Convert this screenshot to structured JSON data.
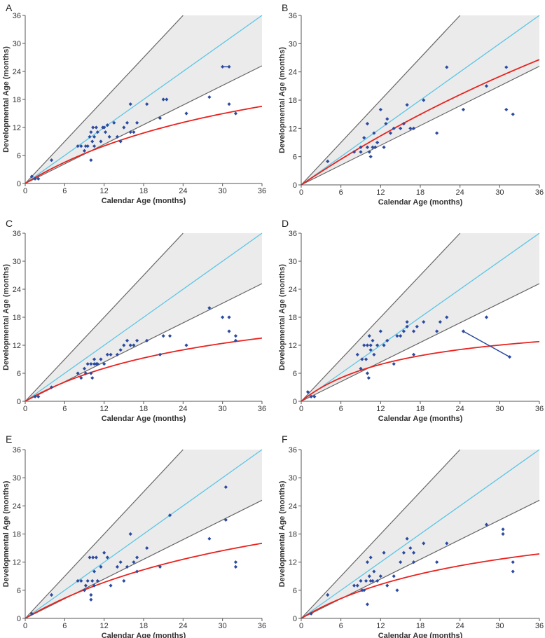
{
  "colors": {
    "band_fill": "#ebebeb",
    "band_edge": "#666666",
    "identity_line": "#5bc6e6",
    "fit_line": "#e8231f",
    "points": "#2b4aa0",
    "axis": "#555555"
  },
  "chart_data": [
    {
      "label": "A",
      "type": "scatter",
      "xlabel": "Calendar Age (months)",
      "ylabel": "Developmental Age (months)",
      "xlim": [
        0,
        36
      ],
      "ylim": [
        0,
        36
      ],
      "xticks": [
        "0",
        "6",
        "12",
        "18",
        "24",
        "30",
        "36"
      ],
      "yticks": [
        "0",
        "6",
        "12",
        "18",
        "24",
        "30",
        "36"
      ],
      "band": {
        "upper_slope": 1.5,
        "lower_slope": 0.7
      },
      "identity": true,
      "fit": {
        "a": 35.0,
        "b": 0.87
      },
      "points": [
        [
          1,
          1.5
        ],
        [
          1.5,
          1
        ],
        [
          2,
          1
        ],
        [
          4,
          5
        ],
        [
          8,
          8
        ],
        [
          8.5,
          8
        ],
        [
          9,
          7
        ],
        [
          9.2,
          8
        ],
        [
          9.5,
          8
        ],
        [
          9.8,
          10
        ],
        [
          10,
          11
        ],
        [
          10,
          5
        ],
        [
          10.2,
          9
        ],
        [
          10.3,
          12
        ],
        [
          10.5,
          10
        ],
        [
          10.5,
          8
        ],
        [
          10.8,
          12
        ],
        [
          11,
          11
        ],
        [
          11.5,
          9
        ],
        [
          11.8,
          12
        ],
        [
          12,
          12
        ],
        [
          12.2,
          11
        ],
        [
          12.5,
          12.5
        ],
        [
          12.8,
          10
        ],
        [
          13.5,
          13
        ],
        [
          14,
          10
        ],
        [
          14.5,
          9
        ],
        [
          15,
          12
        ],
        [
          15.5,
          13
        ],
        [
          16,
          17
        ],
        [
          16,
          11
        ],
        [
          16.5,
          11
        ],
        [
          17,
          13
        ],
        [
          18.5,
          17
        ],
        [
          20.5,
          14
        ],
        [
          21,
          18
        ],
        [
          21.5,
          18
        ],
        [
          24.5,
          15
        ],
        [
          28,
          18.5
        ],
        [
          30,
          25
        ],
        [
          31,
          25
        ],
        [
          31,
          17
        ],
        [
          32,
          15
        ]
      ],
      "links": [
        [
          [
            30,
            25
          ],
          [
            31,
            25
          ]
        ]
      ]
    },
    {
      "label": "B",
      "type": "scatter",
      "xlabel": "Calendar Age (months)",
      "ylabel": "Developmental Age (months)",
      "xlim": [
        0,
        36
      ],
      "ylim": [
        0,
        36
      ],
      "xticks": [
        "0",
        "6",
        "12",
        "18",
        "24",
        "30",
        "36"
      ],
      "yticks": [
        "0",
        "6",
        "12",
        "18",
        "24",
        "30",
        "36"
      ],
      "band": {
        "upper_slope": 1.5,
        "lower_slope": 0.7
      },
      "identity": true,
      "fit": {
        "a": 120.0,
        "b": 0.95
      },
      "points": [
        [
          4,
          5
        ],
        [
          8,
          7
        ],
        [
          9,
          8
        ],
        [
          9,
          7
        ],
        [
          9.5,
          10
        ],
        [
          10,
          13
        ],
        [
          10,
          8
        ],
        [
          10.3,
          7
        ],
        [
          10.5,
          6
        ],
        [
          10.8,
          8
        ],
        [
          11,
          11
        ],
        [
          11.2,
          8
        ],
        [
          11.5,
          9
        ],
        [
          12,
          16
        ],
        [
          12.5,
          8
        ],
        [
          12.8,
          13
        ],
        [
          13,
          14
        ],
        [
          13.5,
          11
        ],
        [
          14,
          12
        ],
        [
          15,
          12
        ],
        [
          15.5,
          13
        ],
        [
          16,
          17
        ],
        [
          16.5,
          12
        ],
        [
          17,
          12
        ],
        [
          18.5,
          18
        ],
        [
          20.5,
          11
        ],
        [
          22,
          25
        ],
        [
          24.5,
          16
        ],
        [
          28,
          21
        ],
        [
          31,
          25
        ],
        [
          31,
          16
        ],
        [
          32,
          15
        ]
      ],
      "links": []
    },
    {
      "label": "C",
      "type": "scatter",
      "xlabel": "Calendar Age (months)",
      "ylabel": "Developmental Age (months)",
      "xlim": [
        0,
        36
      ],
      "ylim": [
        0,
        36
      ],
      "xticks": [
        "0",
        "6",
        "12",
        "18",
        "24",
        "30",
        "36"
      ],
      "yticks": [
        "0",
        "6",
        "12",
        "18",
        "24",
        "30",
        "36"
      ],
      "band": {
        "upper_slope": 1.5,
        "lower_slope": 0.7
      },
      "identity": true,
      "fit": {
        "a": 25.0,
        "b": 0.82
      },
      "points": [
        [
          1.5,
          1
        ],
        [
          2,
          1
        ],
        [
          4,
          3
        ],
        [
          8,
          6
        ],
        [
          8.5,
          5
        ],
        [
          9,
          7
        ],
        [
          9.2,
          6
        ],
        [
          9.5,
          8
        ],
        [
          10,
          8
        ],
        [
          10,
          6
        ],
        [
          10.2,
          5
        ],
        [
          10.5,
          8
        ],
        [
          10.5,
          9
        ],
        [
          10.8,
          8
        ],
        [
          11,
          8
        ],
        [
          11.5,
          9
        ],
        [
          12,
          8
        ],
        [
          12.5,
          10
        ],
        [
          13,
          10
        ],
        [
          14,
          10
        ],
        [
          14.5,
          11
        ],
        [
          15,
          12
        ],
        [
          15.5,
          13
        ],
        [
          16,
          12
        ],
        [
          16.5,
          12
        ],
        [
          17,
          13
        ],
        [
          18.5,
          13
        ],
        [
          20.5,
          10
        ],
        [
          21,
          14
        ],
        [
          22,
          14
        ],
        [
          24.5,
          12
        ],
        [
          28,
          20
        ],
        [
          30,
          18
        ],
        [
          31,
          18
        ],
        [
          31,
          15
        ],
        [
          32,
          14
        ],
        [
          32,
          13
        ]
      ],
      "links": []
    },
    {
      "label": "D",
      "type": "scatter",
      "xlabel": "Calendar Age (months)",
      "ylabel": "Developmental Age (months)",
      "xlim": [
        0,
        36
      ],
      "ylim": [
        0,
        36
      ],
      "xticks": [
        "0",
        "6",
        "12",
        "18",
        "24",
        "30",
        "36"
      ],
      "yticks": [
        "0",
        "6",
        "12",
        "18",
        "24",
        "30",
        "36"
      ],
      "band": {
        "upper_slope": 1.5,
        "lower_slope": 0.7
      },
      "identity": true,
      "fit": {
        "a": 18.5,
        "b": 1.15
      },
      "points": [
        [
          1,
          2
        ],
        [
          1.5,
          1
        ],
        [
          2,
          1
        ],
        [
          8.5,
          10
        ],
        [
          9,
          7
        ],
        [
          9.2,
          9
        ],
        [
          9.5,
          12
        ],
        [
          9.8,
          9
        ],
        [
          10,
          12
        ],
        [
          10,
          6
        ],
        [
          10.2,
          5
        ],
        [
          10.3,
          14
        ],
        [
          10.5,
          12
        ],
        [
          10.5,
          11
        ],
        [
          10.8,
          13
        ],
        [
          11,
          10
        ],
        [
          11.5,
          12
        ],
        [
          12,
          15
        ],
        [
          12.5,
          12
        ],
        [
          13,
          13
        ],
        [
          14,
          8
        ],
        [
          14.5,
          14
        ],
        [
          15,
          14
        ],
        [
          15.5,
          15
        ],
        [
          16,
          16
        ],
        [
          16,
          17
        ],
        [
          17,
          10
        ],
        [
          17,
          15
        ],
        [
          17.5,
          16
        ],
        [
          18.5,
          17
        ],
        [
          20.5,
          15
        ],
        [
          21,
          17
        ],
        [
          22,
          18
        ],
        [
          24.5,
          15
        ],
        [
          28,
          18
        ],
        [
          31.5,
          9.5
        ]
      ],
      "links": [
        [
          [
            24.5,
            15
          ],
          [
            31.5,
            9.5
          ]
        ]
      ]
    },
    {
      "label": "E",
      "type": "scatter",
      "xlabel": "Calendar Age (months)",
      "ylabel": "Developmental Age (months)",
      "xlim": [
        0,
        36
      ],
      "ylim": [
        0,
        36
      ],
      "xticks": [
        "0",
        "6",
        "12",
        "18",
        "24",
        "30",
        "36"
      ],
      "yticks": [
        "0",
        "6",
        "12",
        "18",
        "24",
        "30",
        "36"
      ],
      "band": {
        "upper_slope": 1.5,
        "lower_slope": 0.7
      },
      "identity": true,
      "fit": {
        "a": 35.0,
        "b": 0.82
      },
      "points": [
        [
          1,
          1
        ],
        [
          4,
          5
        ],
        [
          8,
          8
        ],
        [
          8.5,
          8
        ],
        [
          9,
          6
        ],
        [
          9.2,
          7
        ],
        [
          9.5,
          8
        ],
        [
          9.8,
          13
        ],
        [
          10,
          4
        ],
        [
          10,
          5
        ],
        [
          10.2,
          8
        ],
        [
          10.3,
          13
        ],
        [
          10.5,
          10
        ],
        [
          10.5,
          7
        ],
        [
          10.8,
          13
        ],
        [
          11,
          8
        ],
        [
          11.5,
          11
        ],
        [
          12,
          14
        ],
        [
          12.5,
          13
        ],
        [
          13,
          7
        ],
        [
          14,
          11
        ],
        [
          14.5,
          12
        ],
        [
          15,
          8
        ],
        [
          15.5,
          11
        ],
        [
          16,
          18
        ],
        [
          16.5,
          12
        ],
        [
          17,
          13
        ],
        [
          17,
          10
        ],
        [
          18.5,
          15
        ],
        [
          20.5,
          11
        ],
        [
          22,
          22
        ],
        [
          28,
          17
        ],
        [
          30.5,
          28
        ],
        [
          30.5,
          21
        ],
        [
          32,
          12
        ],
        [
          32,
          11
        ]
      ],
      "links": []
    },
    {
      "label": "F",
      "type": "scatter",
      "xlabel": "Calendar Age (months)",
      "ylabel": "Developmental Age (months)",
      "xlim": [
        0,
        36
      ],
      "ylim": [
        0,
        36
      ],
      "xticks": [
        "0",
        "6",
        "12",
        "18",
        "24",
        "30",
        "36"
      ],
      "yticks": [
        "0",
        "6",
        "12",
        "18",
        "24",
        "30",
        "36"
      ],
      "band": {
        "upper_slope": 1.5,
        "lower_slope": 0.7
      },
      "identity": true,
      "fit": {
        "a": 25.0,
        "b": 0.85
      },
      "points": [
        [
          1.5,
          1
        ],
        [
          4,
          5
        ],
        [
          8,
          7
        ],
        [
          8.5,
          7
        ],
        [
          9,
          8
        ],
        [
          9.2,
          6
        ],
        [
          9.5,
          6
        ],
        [
          9.8,
          8
        ],
        [
          10,
          12
        ],
        [
          10,
          3
        ],
        [
          10.3,
          9
        ],
        [
          10.5,
          13
        ],
        [
          10.5,
          8
        ],
        [
          10.8,
          8
        ],
        [
          11,
          10
        ],
        [
          11.5,
          8
        ],
        [
          12,
          9
        ],
        [
          12.5,
          14
        ],
        [
          13,
          7
        ],
        [
          14,
          9
        ],
        [
          14.5,
          6
        ],
        [
          15,
          12
        ],
        [
          15.5,
          14
        ],
        [
          16,
          17
        ],
        [
          16.5,
          15
        ],
        [
          17,
          12
        ],
        [
          17,
          14
        ],
        [
          18.5,
          16
        ],
        [
          20.5,
          12
        ],
        [
          22,
          16
        ],
        [
          28,
          20
        ],
        [
          30.5,
          19
        ],
        [
          30.5,
          18
        ],
        [
          32,
          12
        ],
        [
          32,
          10
        ]
      ],
      "links": []
    }
  ]
}
